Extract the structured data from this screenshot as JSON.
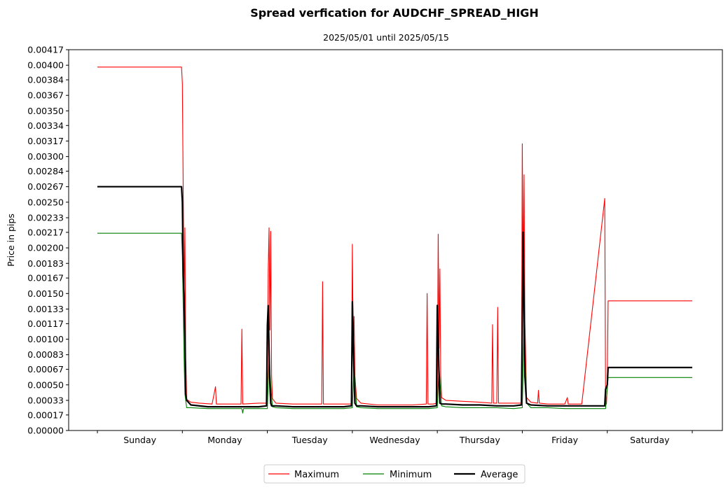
{
  "chart_data": {
    "type": "line",
    "title": "Spread verfication for AUDCHF_SPREAD_HIGH",
    "subtitle": "2025/05/01 until 2025/05/15",
    "xlabel": "",
    "ylabel": "Price in pips",
    "ylim": [
      0,
      0.00417
    ],
    "yticks": [
      "0.00000",
      "0.00017",
      "0.00033",
      "0.00050",
      "0.00067",
      "0.00083",
      "0.00100",
      "0.00117",
      "0.00133",
      "0.00150",
      "0.00167",
      "0.00183",
      "0.00200",
      "0.00217",
      "0.00233",
      "0.00250",
      "0.00267",
      "0.00284",
      "0.00300",
      "0.00317",
      "0.00334",
      "0.00350",
      "0.00367",
      "0.00384",
      "0.00400",
      "0.00417"
    ],
    "xlim": [
      0,
      7
    ],
    "categories": [
      "Sunday",
      "Monday",
      "Tuesday",
      "Wednesday",
      "Thursday",
      "Friday",
      "Saturday"
    ],
    "legend": {
      "placement": "bottom-center",
      "entries": [
        "Maximum",
        "Minimum",
        "Average"
      ]
    },
    "colors": {
      "Maximum": "#ff0000",
      "Minimum": "#008000",
      "Average": "#000000"
    },
    "series": [
      {
        "name": "Maximum",
        "x": [
          0,
          0.99,
          1.0,
          1.02,
          1.03,
          1.04,
          1.05,
          1.1,
          1.2,
          1.35,
          1.39,
          1.4,
          1.5,
          1.69,
          1.7,
          1.71,
          1.9,
          2.0,
          2.01,
          2.02,
          2.03,
          2.04,
          2.05,
          2.06,
          2.1,
          2.3,
          2.5,
          2.64,
          2.65,
          2.66,
          2.8,
          2.99,
          3.0,
          3.01,
          3.02,
          3.03,
          3.05,
          3.1,
          3.3,
          3.5,
          3.7,
          3.87,
          3.88,
          3.89,
          3.95,
          4.0,
          4.01,
          4.02,
          4.03,
          4.04,
          4.05,
          4.1,
          4.3,
          4.5,
          4.64,
          4.65,
          4.66,
          4.7,
          4.71,
          4.72,
          4.8,
          4.99,
          5.0,
          5.01,
          5.02,
          5.03,
          5.05,
          5.1,
          5.18,
          5.19,
          5.2,
          5.3,
          5.5,
          5.53,
          5.54,
          5.55,
          5.7,
          5.97,
          5.98,
          5.99,
          6.0,
          6.01,
          7.0
        ],
        "values": [
          0.00398,
          0.00398,
          0.0038,
          0.0014,
          0.00222,
          0.0008,
          0.00034,
          0.00031,
          0.0003,
          0.00029,
          0.00048,
          0.00029,
          0.00029,
          0.00029,
          0.00111,
          0.00029,
          0.0003,
          0.0003,
          0.00175,
          0.00222,
          0.0011,
          0.00218,
          0.0006,
          0.00035,
          0.0003,
          0.00029,
          0.00029,
          0.00029,
          0.00163,
          0.00029,
          0.00029,
          0.00029,
          0.00204,
          0.0009,
          0.00125,
          0.0006,
          0.00035,
          0.0003,
          0.00028,
          0.00028,
          0.00028,
          0.00029,
          0.0015,
          0.00029,
          0.00029,
          0.0003,
          0.00215,
          0.0009,
          0.00177,
          0.0006,
          0.00036,
          0.00033,
          0.00032,
          0.00031,
          0.0003,
          0.00116,
          0.0003,
          0.0003,
          0.00135,
          0.0003,
          0.0003,
          0.0003,
          0.00314,
          0.0016,
          0.0028,
          0.0012,
          0.00036,
          0.00031,
          0.0003,
          0.00044,
          0.0003,
          0.00029,
          0.00029,
          0.00036,
          0.00029,
          0.00029,
          0.00029,
          0.00254,
          0.00029,
          0.00029,
          0.00048,
          0.00142,
          0.00142
        ]
      },
      {
        "name": "Minimum",
        "x": [
          0,
          0.99,
          1.0,
          1.02,
          1.03,
          1.05,
          1.1,
          1.3,
          1.5,
          1.7,
          1.71,
          1.72,
          1.9,
          2.0,
          2.02,
          2.04,
          2.06,
          2.1,
          2.3,
          2.5,
          2.7,
          2.9,
          3.0,
          3.02,
          3.05,
          3.1,
          3.3,
          3.5,
          3.7,
          3.9,
          4.0,
          4.02,
          4.05,
          4.1,
          4.3,
          4.5,
          4.7,
          4.9,
          5.0,
          5.02,
          5.05,
          5.1,
          5.3,
          5.5,
          5.7,
          5.9,
          5.98,
          6.0,
          6.01,
          7.0
        ],
        "values": [
          0.00216,
          0.00216,
          0.0019,
          0.0008,
          0.0004,
          0.00025,
          0.00025,
          0.00024,
          0.00024,
          0.00024,
          0.00019,
          0.00024,
          0.00024,
          0.00024,
          0.0008,
          0.0005,
          0.00026,
          0.00025,
          0.00024,
          0.00024,
          0.00024,
          0.00024,
          0.00025,
          0.0007,
          0.00026,
          0.00025,
          0.00024,
          0.00024,
          0.00024,
          0.00024,
          0.00025,
          0.0007,
          0.00027,
          0.00026,
          0.00025,
          0.00025,
          0.00025,
          0.00024,
          0.00025,
          0.0011,
          0.0003,
          0.00025,
          0.00025,
          0.00024,
          0.00024,
          0.00024,
          0.00024,
          0.00046,
          0.00058,
          0.00058
        ]
      },
      {
        "name": "Average",
        "x": [
          0,
          0.99,
          1.0,
          1.01,
          1.02,
          1.03,
          1.04,
          1.05,
          1.1,
          1.3,
          1.5,
          1.7,
          1.9,
          1.99,
          2.0,
          2.01,
          2.02,
          2.03,
          2.04,
          2.05,
          2.1,
          2.3,
          2.5,
          2.7,
          2.9,
          2.99,
          3.0,
          3.01,
          3.02,
          3.03,
          3.05,
          3.1,
          3.3,
          3.5,
          3.7,
          3.9,
          3.99,
          4.0,
          4.01,
          4.02,
          4.03,
          4.05,
          4.1,
          4.3,
          4.5,
          4.7,
          4.9,
          4.99,
          5.0,
          5.01,
          5.02,
          5.03,
          5.05,
          5.1,
          5.3,
          5.5,
          5.7,
          5.9,
          5.97,
          5.98,
          6.0,
          6.01,
          7.0
        ],
        "values": [
          0.00267,
          0.00267,
          0.0025,
          0.0017,
          0.0015,
          0.001,
          0.0004,
          0.00033,
          0.00028,
          0.00026,
          0.00026,
          0.00026,
          0.00026,
          0.00027,
          0.00115,
          0.00137,
          0.0009,
          0.0005,
          0.0003,
          0.00027,
          0.00027,
          0.00026,
          0.00026,
          0.00026,
          0.00026,
          0.00027,
          0.00141,
          0.001,
          0.0006,
          0.0003,
          0.00027,
          0.00027,
          0.00026,
          0.00026,
          0.00026,
          0.00026,
          0.00027,
          0.00137,
          0.001,
          0.0006,
          0.0003,
          0.00029,
          0.00029,
          0.00028,
          0.00028,
          0.00027,
          0.00027,
          0.00028,
          0.0011,
          0.00217,
          0.0014,
          0.0006,
          0.0003,
          0.00028,
          0.00027,
          0.00027,
          0.00027,
          0.00027,
          0.00027,
          0.00045,
          0.0005,
          0.00069,
          0.00069
        ]
      }
    ]
  }
}
